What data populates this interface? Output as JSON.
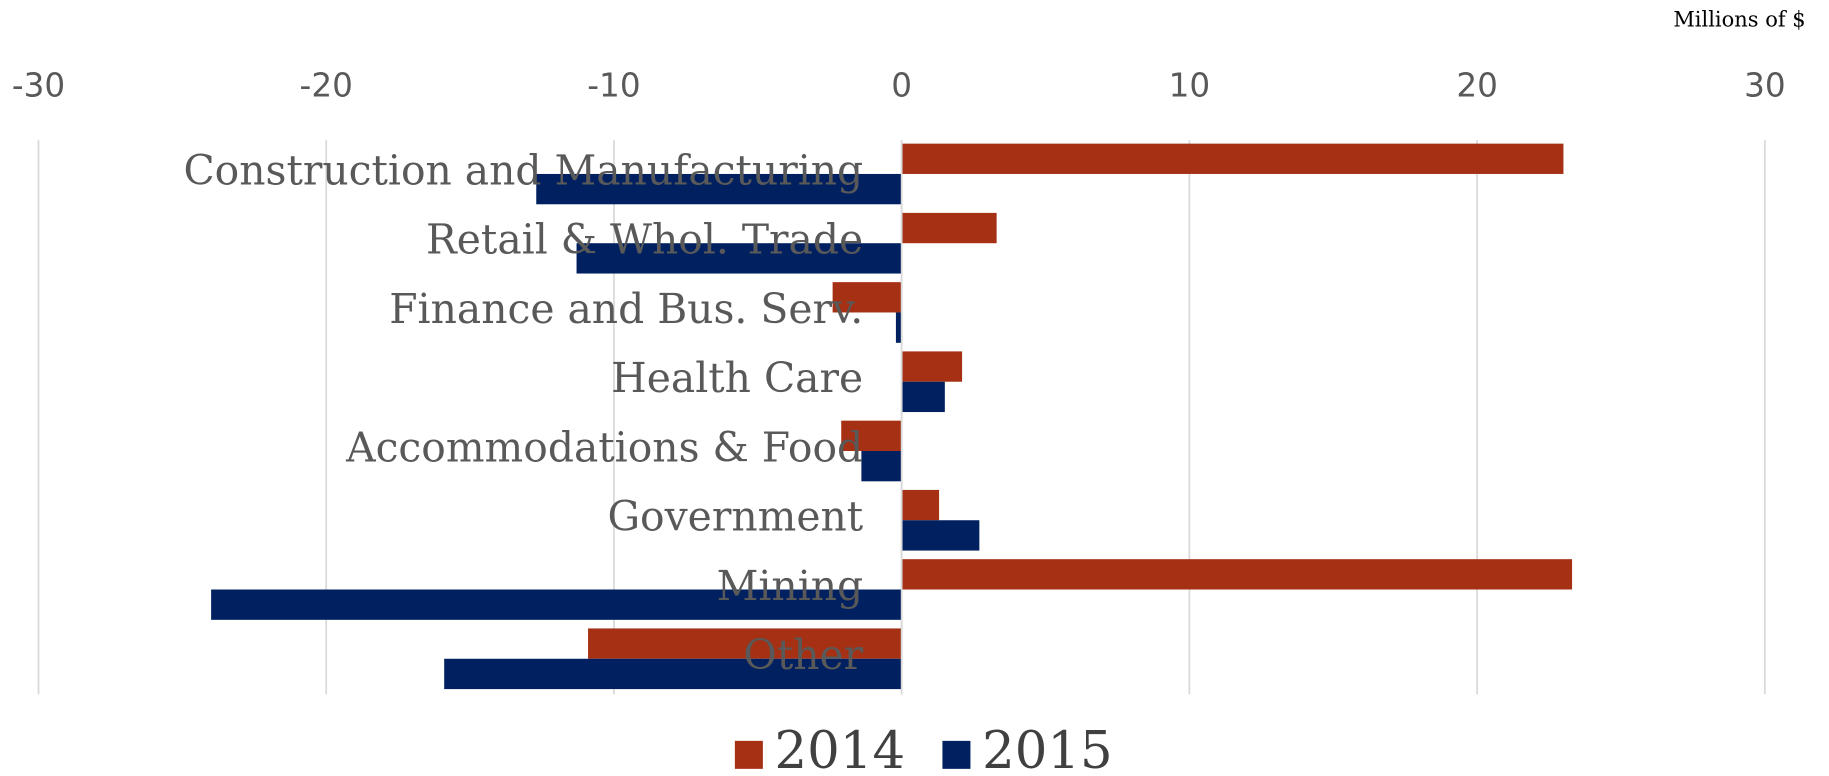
{
  "chart_data": {
    "type": "hbar",
    "x_label": "Millions of $",
    "categories": [
      "Construction and Manufacturing",
      "Retail & Whol. Trade",
      "Finance and Bus. Serv.",
      "Health Care",
      "Accommodations & Food",
      "Government",
      "Mining",
      "Other"
    ],
    "series": [
      {
        "name": "2014",
        "color": "#a53014",
        "values": [
          23.0,
          3.3,
          -2.4,
          2.1,
          -2.1,
          1.3,
          23.3,
          -10.9
        ]
      },
      {
        "name": "2015",
        "color": "#002060",
        "values": [
          -12.7,
          -11.3,
          -0.2,
          1.5,
          -1.4,
          2.7,
          -24.0,
          -15.9
        ]
      }
    ],
    "xlim": [
      -30,
      30
    ],
    "xticks": [
      -30,
      -20,
      -10,
      0,
      10,
      20,
      30
    ],
    "grid": true,
    "legend": "bottom"
  }
}
